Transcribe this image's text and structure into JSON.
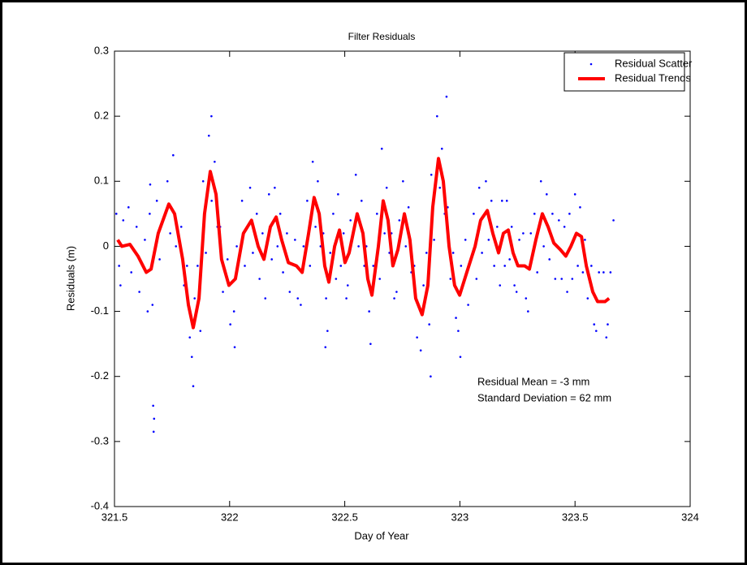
{
  "chart_data": {
    "type": "scatter",
    "title": "Filter Residuals",
    "x_label": "Day of Year",
    "y_label": "Residuals (m)",
    "xlim": [
      321.5,
      324
    ],
    "xticks": [
      321.5,
      322,
      322.5,
      323,
      323.5,
      324
    ],
    "ylim": [
      -0.4,
      0.3
    ],
    "yticks": [
      -0.4,
      -0.3,
      -0.2,
      -0.1,
      0,
      0.1,
      0.2,
      0.3
    ],
    "legend": "northeast",
    "annotations": [
      "Residual Mean = -3 mm",
      "Standard Deviation = 62 mm"
    ],
    "series": [
      {
        "name": "Residual Scatter",
        "color": "#0000ff",
        "style": "markers",
        "x": [
          321.508,
          321.52,
          321.526,
          321.538,
          321.561,
          321.573,
          321.596,
          321.608,
          321.632,
          321.644,
          321.653,
          321.665,
          321.684,
          321.696,
          321.73,
          321.742,
          321.755,
          321.767,
          321.79,
          321.802,
          321.815,
          321.827,
          321.836,
          321.848,
          321.861,
          321.873,
          321.885,
          321.897,
          321.91,
          321.922,
          321.935,
          321.947,
          321.959,
          321.971,
          321.991,
          322.003,
          322.019,
          322.031,
          322.054,
          322.066,
          322.089,
          322.101,
          322.118,
          322.13,
          322.143,
          322.155,
          322.171,
          322.183,
          322.196,
          322.208,
          322.22,
          322.232,
          322.249,
          322.261,
          322.284,
          322.296,
          322.309,
          322.321,
          322.337,
          322.349,
          322.361,
          322.373,
          322.383,
          322.395,
          322.407,
          322.419,
          322.425,
          322.437,
          322.45,
          322.462,
          322.471,
          322.483,
          322.495,
          322.507,
          322.513,
          322.525,
          322.548,
          322.56,
          322.573,
          322.585,
          322.594,
          322.606,
          322.612,
          322.624,
          322.64,
          322.652,
          322.661,
          322.673,
          322.682,
          322.694,
          322.703,
          322.715,
          322.725,
          322.737,
          322.753,
          322.765,
          322.777,
          322.789,
          322.802,
          322.814,
          322.83,
          322.842,
          322.855,
          322.867,
          322.876,
          322.888,
          322.901,
          322.913,
          322.922,
          322.934,
          322.947,
          322.959,
          322.971,
          322.983,
          322.993,
          323.005,
          323.024,
          323.036,
          323.06,
          323.072,
          323.084,
          323.096,
          323.113,
          323.125,
          323.137,
          323.149,
          323.162,
          323.174,
          323.183,
          323.195,
          323.204,
          323.216,
          323.225,
          323.237,
          323.246,
          323.258,
          323.275,
          323.287,
          323.296,
          323.308,
          323.324,
          323.336,
          323.352,
          323.364,
          323.377,
          323.389,
          323.402,
          323.414,
          323.43,
          323.442,
          323.454,
          323.466,
          323.476,
          323.488,
          323.5,
          323.512,
          323.522,
          323.534,
          323.543,
          323.555,
          323.571,
          323.583,
          323.592,
          323.604,
          323.624,
          323.636,
          323.642,
          323.654,
          321.67,
          321.672,
          321.668,
          322.942,
          321.921,
          322.873,
          321.842,
          323.002,
          322.022,
          322.416,
          323.667,
          321.655
        ],
        "values": [
          0.05,
          -0.03,
          -0.06,
          0.04,
          0.06,
          -0.04,
          0.03,
          -0.07,
          0.01,
          -0.1,
          0.05,
          -0.09,
          0.07,
          -0.02,
          0.1,
          0.02,
          0.14,
          0.0,
          0.03,
          -0.06,
          -0.03,
          -0.14,
          -0.17,
          -0.08,
          -0.03,
          -0.13,
          0.1,
          -0.01,
          0.17,
          0.07,
          0.13,
          0.03,
          0.03,
          -0.07,
          -0.02,
          -0.12,
          -0.1,
          0.0,
          0.07,
          -0.03,
          0.09,
          -0.01,
          0.05,
          -0.05,
          0.02,
          -0.08,
          0.08,
          -0.02,
          0.09,
          0.0,
          0.05,
          -0.04,
          0.02,
          -0.07,
          0.01,
          -0.08,
          -0.09,
          0.0,
          0.07,
          -0.03,
          0.13,
          0.03,
          0.1,
          0.0,
          0.02,
          -0.08,
          -0.13,
          -0.01,
          0.05,
          -0.05,
          0.08,
          -0.03,
          0.02,
          -0.08,
          -0.06,
          0.04,
          0.11,
          0.0,
          0.07,
          -0.03,
          0.0,
          -0.1,
          -0.15,
          -0.03,
          0.05,
          -0.05,
          0.15,
          0.02,
          0.09,
          -0.01,
          0.02,
          -0.08,
          -0.07,
          0.04,
          0.1,
          0.0,
          0.06,
          -0.04,
          -0.03,
          -0.14,
          -0.16,
          -0.06,
          -0.01,
          -0.12,
          0.11,
          0.01,
          0.2,
          0.09,
          0.15,
          0.05,
          0.06,
          -0.05,
          -0.01,
          -0.11,
          -0.13,
          -0.03,
          0.01,
          -0.09,
          0.05,
          -0.05,
          0.09,
          -0.01,
          0.1,
          0.01,
          0.07,
          -0.03,
          0.03,
          -0.06,
          0.07,
          -0.03,
          0.07,
          -0.02,
          0.03,
          -0.06,
          -0.07,
          0.01,
          0.02,
          -0.08,
          -0.1,
          0.02,
          0.05,
          -0.04,
          0.1,
          0.0,
          0.08,
          -0.02,
          0.05,
          -0.05,
          0.04,
          -0.05,
          0.03,
          -0.07,
          0.05,
          -0.05,
          0.08,
          -0.03,
          0.06,
          -0.04,
          0.01,
          -0.08,
          -0.03,
          -0.12,
          -0.13,
          -0.04,
          -0.04,
          -0.14,
          -0.12,
          -0.04,
          -0.285,
          -0.265,
          -0.245,
          0.23,
          0.2,
          -0.2,
          -0.215,
          -0.17,
          -0.155,
          -0.155,
          0.04,
          0.095
        ]
      },
      {
        "name": "Residual Trends",
        "color": "#ff0000",
        "style": "line",
        "x": [
          321.514,
          321.532,
          321.567,
          321.602,
          321.638,
          321.659,
          321.69,
          321.736,
          321.761,
          321.796,
          321.821,
          321.842,
          321.867,
          321.891,
          321.916,
          321.941,
          321.965,
          321.997,
          322.025,
          322.06,
          322.095,
          322.124,
          322.149,
          322.177,
          322.202,
          322.226,
          322.255,
          322.29,
          322.315,
          322.343,
          322.367,
          322.389,
          322.413,
          322.431,
          322.456,
          322.477,
          322.501,
          322.519,
          322.554,
          322.579,
          322.6,
          322.618,
          322.646,
          322.667,
          322.688,
          322.709,
          322.731,
          322.759,
          322.783,
          322.808,
          322.836,
          322.861,
          322.882,
          322.907,
          322.928,
          322.953,
          322.977,
          322.999,
          323.03,
          323.066,
          323.09,
          323.119,
          323.143,
          323.168,
          323.189,
          323.21,
          323.231,
          323.252,
          323.281,
          323.302,
          323.33,
          323.358,
          323.383,
          323.408,
          323.436,
          323.46,
          323.482,
          323.506,
          323.528,
          323.549,
          323.577,
          323.598,
          323.63,
          323.648
        ],
        "values": [
          0.01,
          0.0,
          0.003,
          -0.015,
          -0.04,
          -0.035,
          0.02,
          0.065,
          0.05,
          -0.02,
          -0.09,
          -0.125,
          -0.08,
          0.05,
          0.115,
          0.08,
          -0.02,
          -0.06,
          -0.05,
          0.02,
          0.04,
          0.0,
          -0.02,
          0.03,
          0.045,
          0.01,
          -0.025,
          -0.03,
          -0.04,
          0.02,
          0.075,
          0.05,
          -0.03,
          -0.055,
          0.0,
          0.025,
          -0.025,
          -0.01,
          0.05,
          0.02,
          -0.05,
          -0.075,
          0.0,
          0.07,
          0.04,
          -0.03,
          -0.005,
          0.05,
          0.01,
          -0.08,
          -0.105,
          -0.06,
          0.06,
          0.135,
          0.1,
          0.0,
          -0.06,
          -0.075,
          -0.04,
          0.0,
          0.04,
          0.055,
          0.02,
          -0.01,
          0.02,
          0.025,
          -0.01,
          -0.03,
          -0.03,
          -0.035,
          0.01,
          0.05,
          0.03,
          0.005,
          -0.005,
          -0.015,
          0.0,
          0.02,
          0.015,
          -0.03,
          -0.07,
          -0.085,
          -0.085,
          -0.08
        ]
      }
    ]
  }
}
